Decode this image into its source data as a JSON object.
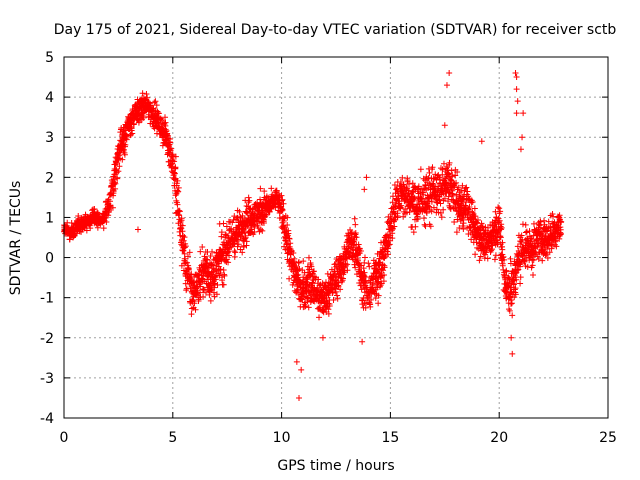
{
  "chart_data": {
    "type": "scatter",
    "title": "Day 175 of 2021, Sidereal Day-to-day VTEC variation (SDTVAR) for receiver sctb",
    "xlabel": "GPS time / hours",
    "ylabel": "SDTVAR / TECUs",
    "xlim": [
      0,
      25
    ],
    "ylim": [
      -4,
      5
    ],
    "xticks": [
      0,
      5,
      10,
      15,
      20,
      25
    ],
    "yticks": [
      -4,
      -3,
      -2,
      -1,
      0,
      1,
      2,
      3,
      4,
      5
    ],
    "xtick_labels": [
      "0",
      "5",
      "10",
      "15",
      "20",
      "25"
    ],
    "ytick_labels": [
      "-4",
      "-3",
      "-2",
      "-1",
      "0",
      "1",
      "2",
      "3",
      "4",
      "5"
    ],
    "grid": true,
    "marker": "+",
    "color": "#ff0000",
    "series": [
      {
        "name": "SDTVAR",
        "profile_x": [
          0.0,
          0.3,
          0.6,
          1.0,
          1.4,
          1.8,
          2.0,
          2.3,
          2.6,
          2.9,
          3.2,
          3.5,
          3.8,
          4.1,
          4.4,
          4.7,
          5.0,
          5.3,
          5.6,
          5.9,
          6.2,
          6.5,
          6.8,
          7.1,
          7.4,
          7.7,
          8.0,
          8.3,
          8.6,
          8.9,
          9.2,
          9.5,
          9.8,
          10.1,
          10.4,
          10.7,
          11.0,
          11.3,
          11.6,
          11.9,
          12.2,
          12.5,
          12.8,
          13.1,
          13.4,
          13.7,
          14.0,
          14.3,
          14.6,
          14.9,
          15.2,
          15.5,
          15.8,
          16.1,
          16.4,
          16.7,
          17.0,
          17.3,
          17.6,
          17.9,
          18.2,
          18.5,
          18.8,
          19.1,
          19.4,
          19.7,
          20.0,
          20.3,
          20.6,
          20.9,
          21.2,
          21.5,
          21.8,
          22.1,
          22.4,
          22.7,
          22.85
        ],
        "profile_center": [
          0.7,
          0.6,
          0.8,
          0.9,
          1.0,
          0.9,
          1.2,
          2.0,
          2.8,
          3.2,
          3.5,
          3.7,
          3.8,
          3.6,
          3.3,
          3.0,
          2.4,
          1.0,
          -0.2,
          -0.9,
          -0.6,
          -0.3,
          -0.5,
          -0.2,
          0.2,
          0.5,
          0.6,
          0.9,
          1.0,
          1.1,
          1.2,
          1.3,
          1.5,
          0.9,
          0.0,
          -0.6,
          -0.8,
          -0.6,
          -0.9,
          -1.1,
          -0.8,
          -0.5,
          -0.2,
          0.3,
          0.4,
          -0.6,
          -0.9,
          -0.5,
          -0.2,
          0.5,
          1.3,
          1.6,
          1.5,
          1.3,
          1.4,
          1.5,
          1.7,
          1.6,
          1.9,
          1.6,
          1.2,
          1.3,
          0.8,
          0.5,
          0.3,
          0.6,
          0.8,
          -0.7,
          -0.8,
          0.0,
          0.3,
          0.2,
          0.5,
          0.4,
          0.6,
          0.8,
          0.7
        ],
        "profile_spread": [
          0.25,
          0.3,
          0.3,
          0.3,
          0.3,
          0.3,
          0.5,
          0.7,
          0.7,
          0.6,
          0.5,
          0.5,
          0.5,
          0.5,
          0.5,
          0.6,
          0.8,
          1.0,
          1.0,
          0.9,
          0.9,
          0.8,
          0.9,
          0.9,
          0.9,
          0.8,
          0.8,
          0.8,
          0.7,
          0.7,
          0.6,
          0.5,
          0.4,
          0.8,
          0.9,
          0.9,
          0.8,
          0.8,
          0.8,
          0.7,
          0.8,
          0.8,
          0.8,
          0.8,
          1.0,
          0.9,
          0.9,
          0.9,
          0.9,
          0.9,
          0.9,
          0.8,
          0.9,
          0.9,
          0.9,
          0.9,
          0.8,
          0.9,
          0.9,
          0.9,
          0.9,
          0.9,
          0.8,
          0.7,
          0.6,
          0.7,
          0.9,
          1.0,
          1.0,
          0.9,
          0.8,
          0.8,
          0.8,
          0.8,
          0.8,
          0.8,
          0.6
        ],
        "outliers": [
          [
            10.8,
            -3.5
          ],
          [
            10.7,
            -2.6
          ],
          [
            10.9,
            -2.8
          ],
          [
            17.7,
            4.6
          ],
          [
            17.6,
            4.3
          ],
          [
            20.75,
            4.6
          ],
          [
            20.8,
            4.5
          ],
          [
            20.8,
            4.2
          ],
          [
            20.85,
            3.9
          ],
          [
            20.8,
            3.6
          ],
          [
            21.1,
            3.6
          ],
          [
            21.05,
            3.0
          ],
          [
            21.0,
            2.7
          ],
          [
            20.6,
            -2.4
          ],
          [
            20.55,
            -2.0
          ],
          [
            13.8,
            1.7
          ],
          [
            13.9,
            2.0
          ],
          [
            16.4,
            2.2
          ],
          [
            17.5,
            3.3
          ],
          [
            19.2,
            2.9
          ],
          [
            3.4,
            0.7
          ],
          [
            11.9,
            -2.0
          ],
          [
            13.7,
            -2.1
          ]
        ]
      }
    ]
  }
}
